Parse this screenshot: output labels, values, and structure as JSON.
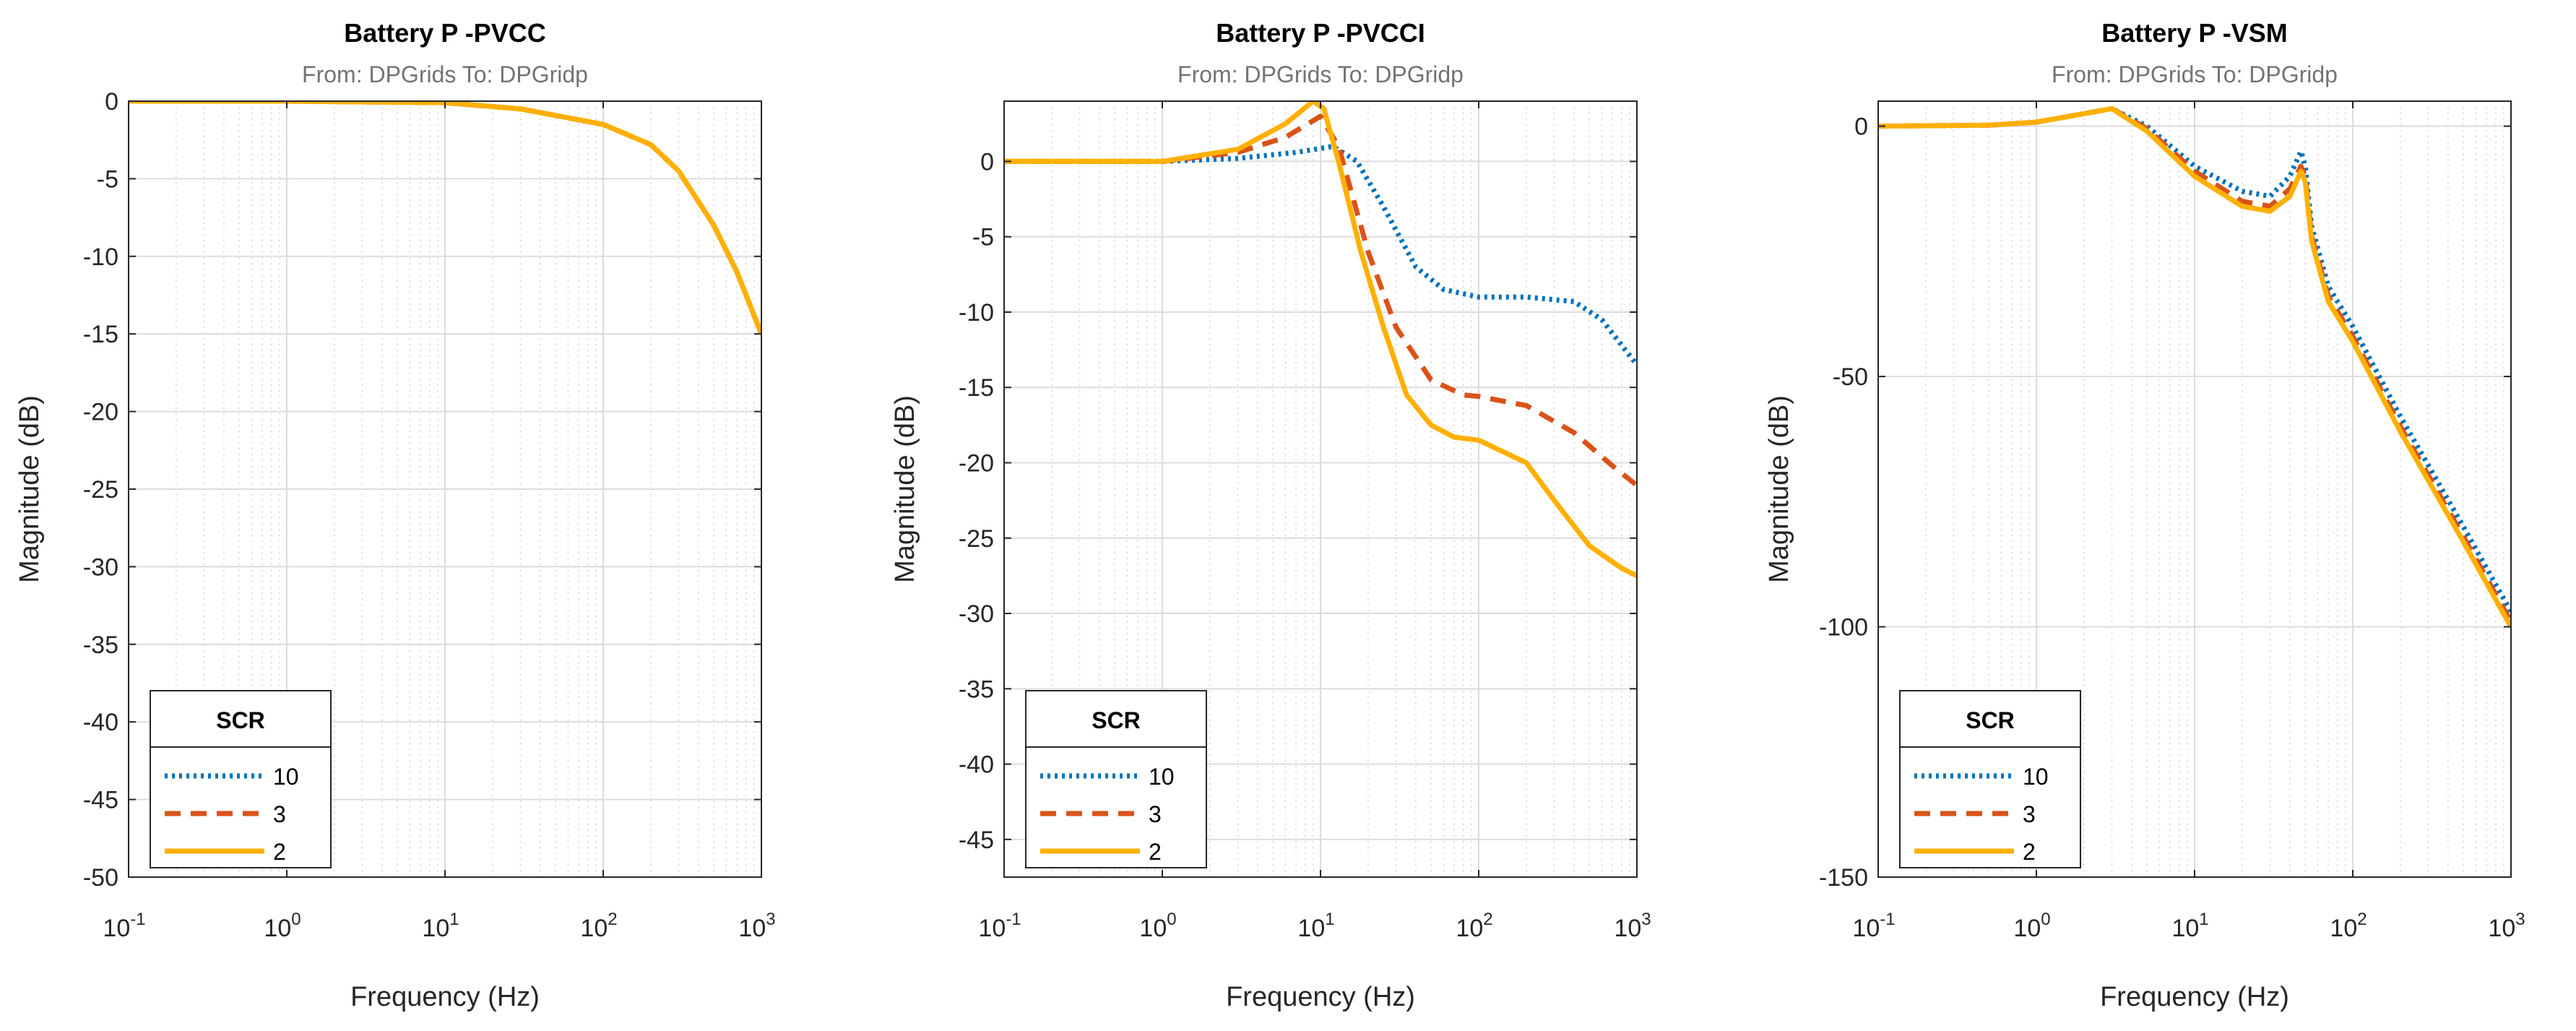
{
  "figure": {
    "from_label": "From: DPGrids",
    "to_label": "To: DPGridp"
  },
  "chart_data": [
    {
      "type": "line",
      "title": "Battery P -PVCC",
      "subtitle": "From: DPGrids  To: DPGridp",
      "xlabel": "Frequency  (Hz)",
      "ylabel": "Magnitude (dB)",
      "xscale": "log",
      "xlim": [
        0.1,
        1000
      ],
      "ylim": [
        -50,
        0
      ],
      "yticks": [
        0,
        -5,
        -10,
        -15,
        -20,
        -25,
        -30,
        -35,
        -40,
        -45,
        -50
      ],
      "xticks": [
        {
          "base": "10",
          "exp": "-1"
        },
        {
          "base": "10",
          "exp": "0"
        },
        {
          "base": "10",
          "exp": "1"
        },
        {
          "base": "10",
          "exp": "2"
        },
        {
          "base": "10",
          "exp": "3"
        }
      ],
      "grid": true,
      "legend": {
        "title": "SCR",
        "location": "bottom-left"
      },
      "series": [
        {
          "name": "10",
          "color": "#0072BD",
          "style": "dotted",
          "x": [
            0.1,
            1,
            10,
            30,
            100,
            200,
            300,
            500,
            700,
            1000
          ],
          "y": [
            0,
            0,
            -0.1,
            -0.5,
            -1.5,
            -2.8,
            -4.5,
            -8,
            -11,
            -15
          ]
        },
        {
          "name": "3",
          "color": "#D95319",
          "style": "dashed",
          "x": [
            0.1,
            1,
            10,
            30,
            100,
            200,
            300,
            500,
            700,
            1000
          ],
          "y": [
            0,
            0,
            -0.1,
            -0.5,
            -1.5,
            -2.8,
            -4.5,
            -8,
            -11,
            -15
          ]
        },
        {
          "name": "2",
          "color": "#FFB000",
          "style": "solid",
          "x": [
            0.1,
            1,
            10,
            30,
            100,
            200,
            300,
            500,
            700,
            1000
          ],
          "y": [
            0,
            0,
            -0.1,
            -0.5,
            -1.5,
            -2.8,
            -4.5,
            -8,
            -11,
            -15
          ]
        }
      ]
    },
    {
      "type": "line",
      "title": "Battery P -PVCCI",
      "subtitle": "From: DPGrids  To: DPGridp",
      "xlabel": "Frequency  (Hz)",
      "ylabel": "Magnitude (dB)",
      "xscale": "log",
      "xlim": [
        0.1,
        1000
      ],
      "ylim": [
        -47.5,
        4
      ],
      "yticks": [
        0,
        -5,
        -10,
        -15,
        -20,
        -25,
        -30,
        -35,
        -40,
        -45
      ],
      "xticks": [
        {
          "base": "10",
          "exp": "-1"
        },
        {
          "base": "10",
          "exp": "0"
        },
        {
          "base": "10",
          "exp": "1"
        },
        {
          "base": "10",
          "exp": "2"
        },
        {
          "base": "10",
          "exp": "3"
        }
      ],
      "grid": true,
      "legend": {
        "title": "SCR",
        "location": "bottom-left"
      },
      "series": [
        {
          "name": "10",
          "color": "#0072BD",
          "style": "dotted",
          "x": [
            0.1,
            1,
            3,
            7,
            12,
            17,
            25,
            40,
            60,
            100,
            200,
            400,
            600,
            1000
          ],
          "y": [
            0,
            0,
            0.2,
            0.6,
            1.0,
            0,
            -3,
            -7,
            -8.5,
            -9,
            -9,
            -9.3,
            -10.5,
            -13.5
          ]
        },
        {
          "name": "3",
          "color": "#D95319",
          "style": "dashed",
          "x": [
            0.1,
            1,
            3,
            6,
            10,
            13,
            20,
            30,
            50,
            80,
            100,
            200,
            400,
            700,
            1000
          ],
          "y": [
            0,
            0,
            0.6,
            1.6,
            3,
            1,
            -6,
            -11,
            -14.5,
            -15.5,
            -15.6,
            -16.2,
            -18,
            -20.2,
            -21.5
          ]
        },
        {
          "name": "2",
          "color": "#FFB000",
          "style": "solid",
          "x": [
            0.1,
            1,
            3,
            6,
            9,
            10.5,
            13,
            18,
            25,
            35,
            50,
            70,
            100,
            200,
            300,
            500,
            800,
            1000
          ],
          "y": [
            0,
            0,
            0.8,
            2.5,
            4.0,
            3.5,
            0,
            -6,
            -11,
            -15.5,
            -17.5,
            -18.3,
            -18.5,
            -20,
            -22.5,
            -25.5,
            -27,
            -27.5
          ]
        }
      ]
    },
    {
      "type": "line",
      "title": "Battery P -VSM",
      "subtitle": "From: DPGrids  To: DPGridp",
      "xlabel": "Frequency  (Hz)",
      "ylabel": "Magnitude (dB)",
      "xscale": "log",
      "xlim": [
        0.1,
        1000
      ],
      "ylim": [
        -150,
        5
      ],
      "yticks": [
        0,
        -50,
        -100,
        -150
      ],
      "xticks": [
        {
          "base": "10",
          "exp": "-1"
        },
        {
          "base": "10",
          "exp": "0"
        },
        {
          "base": "10",
          "exp": "1"
        },
        {
          "base": "10",
          "exp": "2"
        },
        {
          "base": "10",
          "exp": "3"
        }
      ],
      "grid": true,
      "legend": {
        "title": "SCR",
        "location": "bottom-left"
      },
      "series": [
        {
          "name": "10",
          "color": "#0072BD",
          "style": "dotted",
          "x": [
            0.1,
            0.5,
            1,
            2,
            3,
            5,
            10,
            20,
            30,
            40,
            47,
            50,
            55,
            70,
            100,
            200,
            500,
            1000
          ],
          "y": [
            0,
            0.2,
            0.8,
            2.5,
            3.5,
            0,
            -8,
            -13,
            -14,
            -10,
            -5,
            -8,
            -20,
            -32,
            -40,
            -58,
            -80,
            -97
          ]
        },
        {
          "name": "3",
          "color": "#D95319",
          "style": "dashed",
          "x": [
            0.1,
            0.5,
            1,
            2,
            3,
            5,
            10,
            20,
            30,
            40,
            47,
            50,
            55,
            70,
            100,
            200,
            500,
            1000
          ],
          "y": [
            0,
            0.2,
            0.8,
            2.5,
            3.5,
            -0.5,
            -9,
            -15,
            -16,
            -12.5,
            -8,
            -10,
            -22,
            -34,
            -42,
            -60,
            -82,
            -99
          ]
        },
        {
          "name": "2",
          "color": "#FFB000",
          "style": "solid",
          "x": [
            0.1,
            0.5,
            1,
            2,
            3,
            5,
            10,
            20,
            30,
            40,
            47,
            50,
            55,
            70,
            100,
            200,
            500,
            1000
          ],
          "y": [
            0,
            0.2,
            0.8,
            2.5,
            3.5,
            -1,
            -10,
            -16,
            -17,
            -14,
            -9,
            -11,
            -23,
            -35,
            -43,
            -61,
            -83,
            -100
          ]
        }
      ]
    }
  ]
}
